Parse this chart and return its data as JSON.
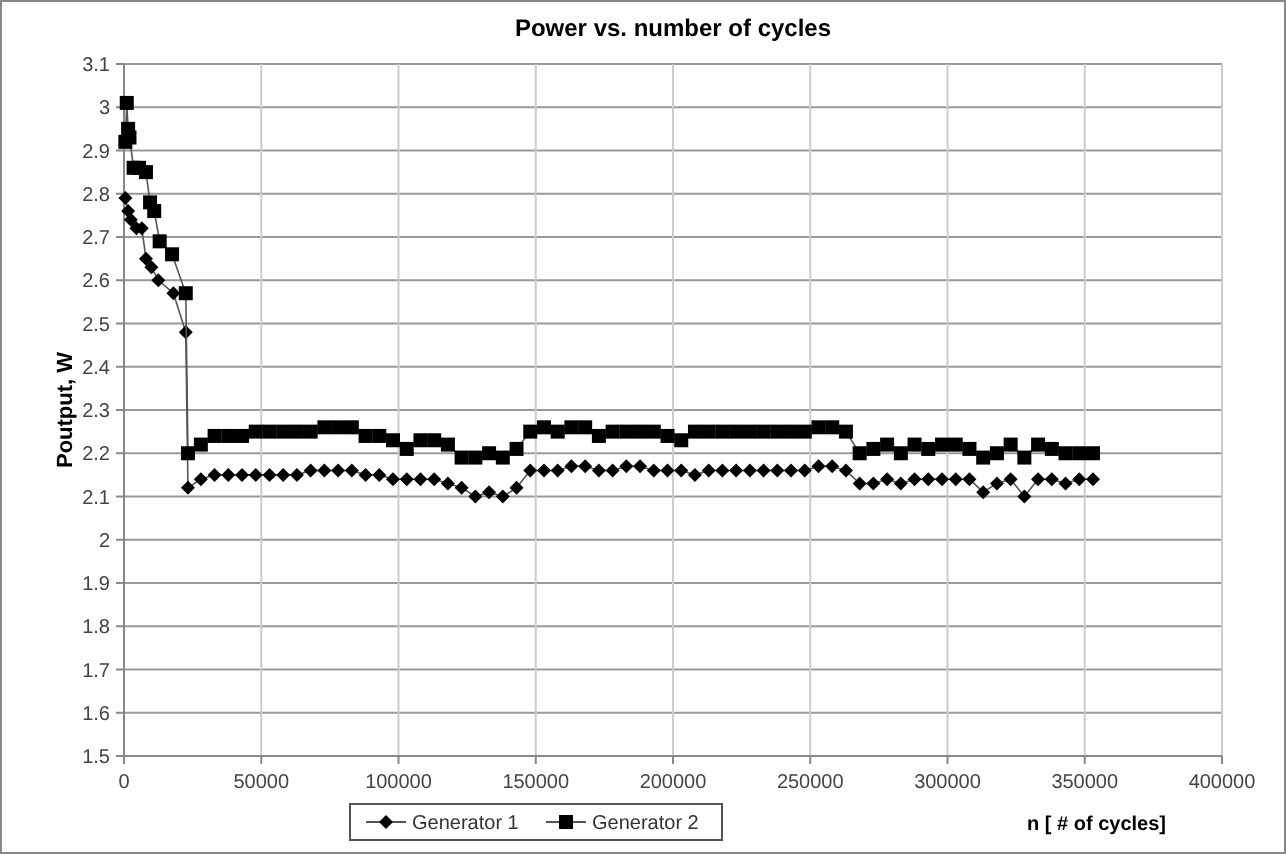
{
  "chart_data": {
    "type": "line",
    "title": "Power vs. number of cycles",
    "xlabel": "n [ # of cycles]",
    "ylabel": "Poutput, W",
    "xlim": [
      0,
      400000
    ],
    "xticks": [
      0,
      50000,
      100000,
      150000,
      200000,
      250000,
      300000,
      350000,
      400000
    ],
    "ylim": [
      1.5,
      3.1
    ],
    "yticks": [
      1.5,
      1.6,
      1.7,
      1.8,
      1.9,
      2,
      2.1,
      2.2,
      2.3,
      2.4,
      2.5,
      2.6,
      2.7,
      2.8,
      2.9,
      3,
      3.1
    ],
    "grid": true,
    "legend": "bottom",
    "line_style": "solid",
    "series": [
      {
        "name": "Generator 1",
        "color": "#000000",
        "marker": "diamond",
        "x": [
          500,
          1500,
          2500,
          4500,
          6500,
          8000,
          10000,
          12500,
          18000,
          22500,
          23300,
          28000,
          33000,
          38000,
          43000,
          48000,
          53000,
          58000,
          63000,
          68000,
          73000,
          78000,
          83000,
          88000,
          93000,
          98000,
          103000,
          108000,
          113000,
          118000,
          123000,
          128000,
          133000,
          138000,
          143000,
          148000,
          153000,
          158000,
          163000,
          168000,
          173000,
          178000,
          183000,
          188000,
          193000,
          198000,
          203000,
          208000,
          213000,
          218000,
          223000,
          228000,
          233000,
          238000,
          243000,
          248000,
          253000,
          258000,
          263000,
          268000,
          273000,
          278000,
          283000,
          288000,
          293000,
          298000,
          303000,
          308000,
          313000,
          318000,
          323000,
          328000,
          333000,
          338000,
          343000,
          348000,
          353000
        ],
        "values": [
          2.79,
          2.76,
          2.74,
          2.72,
          2.72,
          2.65,
          2.63,
          2.6,
          2.57,
          2.48,
          2.12,
          2.14,
          2.15,
          2.15,
          2.15,
          2.15,
          2.15,
          2.15,
          2.15,
          2.16,
          2.16,
          2.16,
          2.16,
          2.15,
          2.15,
          2.14,
          2.14,
          2.14,
          2.14,
          2.13,
          2.12,
          2.1,
          2.11,
          2.1,
          2.12,
          2.16,
          2.16,
          2.16,
          2.17,
          2.17,
          2.16,
          2.16,
          2.17,
          2.17,
          2.16,
          2.16,
          2.16,
          2.15,
          2.16,
          2.16,
          2.16,
          2.16,
          2.16,
          2.16,
          2.16,
          2.16,
          2.17,
          2.17,
          2.16,
          2.13,
          2.13,
          2.14,
          2.13,
          2.14,
          2.14,
          2.14,
          2.14,
          2.14,
          2.11,
          2.13,
          2.14,
          2.1,
          2.14,
          2.14,
          2.13,
          2.14,
          2.14
        ]
      },
      {
        "name": "Generator 2",
        "color": "#000000",
        "marker": "square",
        "x": [
          500,
          1000,
          1500,
          2000,
          3500,
          5500,
          8000,
          9500,
          11000,
          13000,
          17500,
          22500,
          23300,
          28000,
          33000,
          38000,
          43000,
          48000,
          53000,
          58000,
          63000,
          68000,
          73000,
          78000,
          83000,
          88000,
          93000,
          98000,
          103000,
          108000,
          113000,
          118000,
          123000,
          128000,
          133000,
          138000,
          143000,
          148000,
          153000,
          158000,
          163000,
          168000,
          173000,
          178000,
          183000,
          188000,
          193000,
          198000,
          203000,
          208000,
          213000,
          218000,
          223000,
          228000,
          233000,
          238000,
          243000,
          248000,
          253000,
          258000,
          263000,
          268000,
          273000,
          278000,
          283000,
          288000,
          293000,
          298000,
          303000,
          308000,
          313000,
          318000,
          323000,
          328000,
          333000,
          338000,
          343000,
          348000,
          353000
        ],
        "values": [
          2.92,
          3.01,
          2.95,
          2.93,
          2.86,
          2.86,
          2.85,
          2.78,
          2.76,
          2.69,
          2.66,
          2.57,
          2.2,
          2.22,
          2.24,
          2.24,
          2.24,
          2.25,
          2.25,
          2.25,
          2.25,
          2.25,
          2.26,
          2.26,
          2.26,
          2.24,
          2.24,
          2.23,
          2.21,
          2.23,
          2.23,
          2.22,
          2.19,
          2.19,
          2.2,
          2.19,
          2.21,
          2.25,
          2.26,
          2.25,
          2.26,
          2.26,
          2.24,
          2.25,
          2.25,
          2.25,
          2.25,
          2.24,
          2.23,
          2.25,
          2.25,
          2.25,
          2.25,
          2.25,
          2.25,
          2.25,
          2.25,
          2.25,
          2.26,
          2.26,
          2.25,
          2.2,
          2.21,
          2.22,
          2.2,
          2.22,
          2.21,
          2.22,
          2.22,
          2.21,
          2.19,
          2.2,
          2.22,
          2.19,
          2.22,
          2.21,
          2.2,
          2.2,
          2.2
        ]
      }
    ]
  }
}
